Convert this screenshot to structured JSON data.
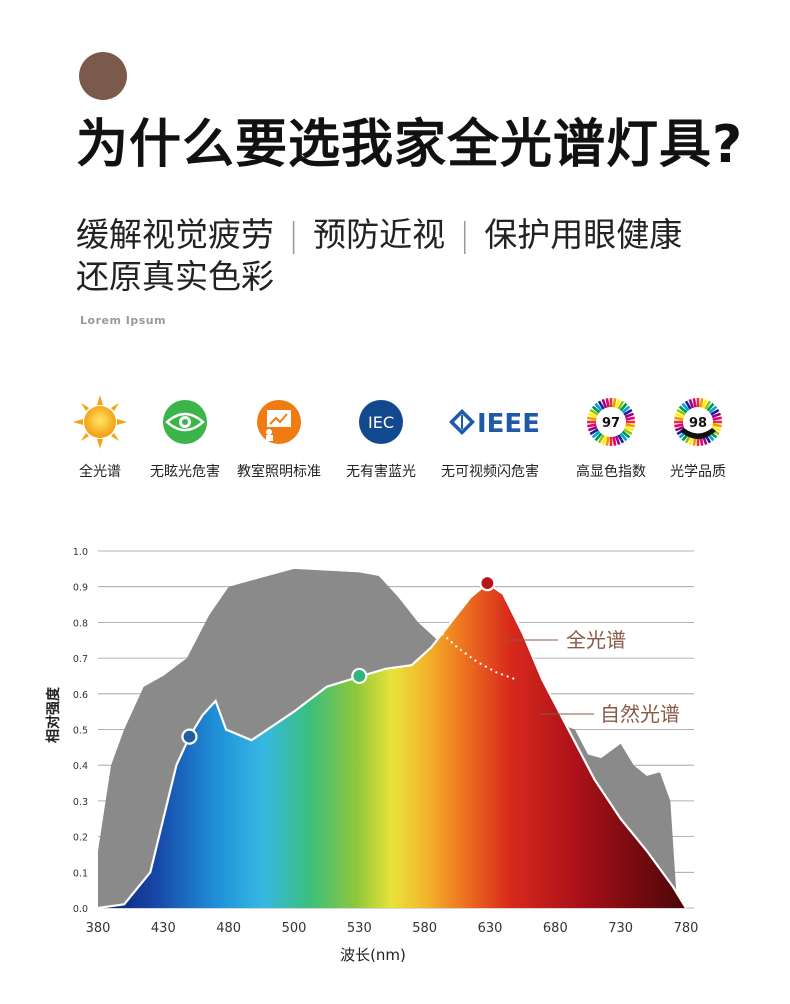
{
  "header": {
    "title": "为什么要选我家全光谱灯具?",
    "subtitle_items": [
      "缓解视觉疲劳",
      "预防近视",
      "保护用眼健康",
      "还原真实色彩"
    ],
    "lorem": "Lorem Ipsum"
  },
  "features": [
    {
      "icon": "sun-icon",
      "label": "全光谱"
    },
    {
      "icon": "eye-icon",
      "label": "无眩光危害"
    },
    {
      "icon": "classroom-icon",
      "label": "教室照明标准"
    },
    {
      "icon": "iec-icon",
      "label": "无有害蓝光",
      "badge": "IEC"
    },
    {
      "icon": "ieee-icon",
      "label": "无可视频闪危害",
      "badge": "IEEE"
    },
    {
      "icon": "cri-97-icon",
      "label": "高显色指数",
      "badge": "97"
    },
    {
      "icon": "cri-98-icon",
      "label": "光学品质",
      "badge": "98"
    }
  ],
  "colors": {
    "accent_brown": "#7b5a4b",
    "natural_gray": "#8a8a8a",
    "annotation": "#8a5a48"
  },
  "chart_data": {
    "type": "area",
    "xlabel": "波长(nm)",
    "ylabel": "相对强度",
    "xlim": [
      380,
      780
    ],
    "ylim": [
      0,
      1.0
    ],
    "x_ticks": [
      "380",
      "430",
      "480",
      "500",
      "530",
      "580",
      "630",
      "680",
      "730",
      "780"
    ],
    "y_ticks": [
      "0.0",
      "0.1",
      "0.2",
      "0.3",
      "0.4",
      "0.5",
      "0.6",
      "0.7",
      "0.8",
      "0.9",
      "1.0"
    ],
    "grid": true,
    "series": [
      {
        "name": "自然光谱",
        "points": [
          [
            380,
            0.16
          ],
          [
            390,
            0.4
          ],
          [
            400,
            0.5
          ],
          [
            415,
            0.62
          ],
          [
            430,
            0.65
          ],
          [
            448,
            0.7
          ],
          [
            465,
            0.82
          ],
          [
            480,
            0.9
          ],
          [
            500,
            0.95
          ],
          [
            530,
            0.94
          ],
          [
            545,
            0.93
          ],
          [
            560,
            0.87
          ],
          [
            575,
            0.8
          ],
          [
            590,
            0.75
          ],
          [
            605,
            0.72
          ],
          [
            630,
            0.65
          ],
          [
            650,
            0.6
          ],
          [
            680,
            0.52
          ],
          [
            695,
            0.5
          ],
          [
            705,
            0.43
          ],
          [
            715,
            0.42
          ],
          [
            730,
            0.46
          ],
          [
            740,
            0.4
          ],
          [
            750,
            0.37
          ],
          [
            760,
            0.38
          ],
          [
            768,
            0.3
          ],
          [
            773,
            0.02
          ]
        ]
      },
      {
        "name": "全光谱",
        "points": [
          [
            380,
            0.0
          ],
          [
            400,
            0.01
          ],
          [
            420,
            0.1
          ],
          [
            440,
            0.4
          ],
          [
            450,
            0.48
          ],
          [
            460,
            0.54
          ],
          [
            470,
            0.58
          ],
          [
            478,
            0.5
          ],
          [
            487,
            0.47
          ],
          [
            500,
            0.55
          ],
          [
            515,
            0.62
          ],
          [
            532,
            0.65
          ],
          [
            550,
            0.67
          ],
          [
            570,
            0.68
          ],
          [
            585,
            0.73
          ],
          [
            600,
            0.8
          ],
          [
            615,
            0.87
          ],
          [
            628,
            0.91
          ],
          [
            640,
            0.88
          ],
          [
            655,
            0.77
          ],
          [
            670,
            0.64
          ],
          [
            690,
            0.5
          ],
          [
            710,
            0.36
          ],
          [
            730,
            0.25
          ],
          [
            750,
            0.16
          ],
          [
            770,
            0.06
          ],
          [
            780,
            0.0
          ]
        ]
      }
    ],
    "markers": [
      {
        "x": 450,
        "y": 0.48,
        "color": "#1f5fa0"
      },
      {
        "x": 530,
        "y": 0.65,
        "color": "#2eb67d"
      },
      {
        "x": 628,
        "y": 0.91,
        "color": "#b8141c"
      }
    ],
    "annotations": [
      {
        "text": "全光谱",
        "series": "全光谱"
      },
      {
        "text": "自然光谱",
        "series": "自然光谱"
      }
    ]
  }
}
